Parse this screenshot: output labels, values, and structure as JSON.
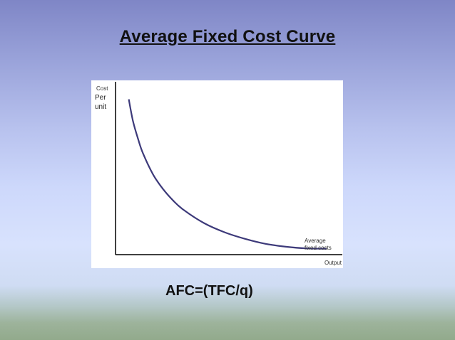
{
  "slide": {
    "title": "Average Fixed Cost Curve",
    "formula": "AFC=(TFC/q)"
  },
  "colors": {
    "curve": "#3d3a7a",
    "axis": "#000000",
    "panel": "#ffffff"
  },
  "chart_data": {
    "type": "line",
    "title": "",
    "ylabel_lines": [
      "Cost",
      "Per",
      "unit"
    ],
    "xlabel": "Output",
    "curve_label_lines": [
      "Average",
      "fixed costs"
    ],
    "grid": false,
    "legend": "none",
    "xlim": [
      0,
      10
    ],
    "ylim": [
      0,
      10
    ],
    "series": [
      {
        "x": [
          0.3,
          0.5,
          0.75,
          1,
          1.5,
          2,
          2.5,
          3,
          4,
          5,
          6,
          7,
          8,
          9,
          10
        ],
        "y": [
          9.2,
          7.9,
          6.8,
          5.9,
          4.6,
          3.7,
          3.0,
          2.45,
          1.65,
          1.1,
          0.7,
          0.4,
          0.22,
          0.12,
          0.1
        ]
      }
    ]
  }
}
